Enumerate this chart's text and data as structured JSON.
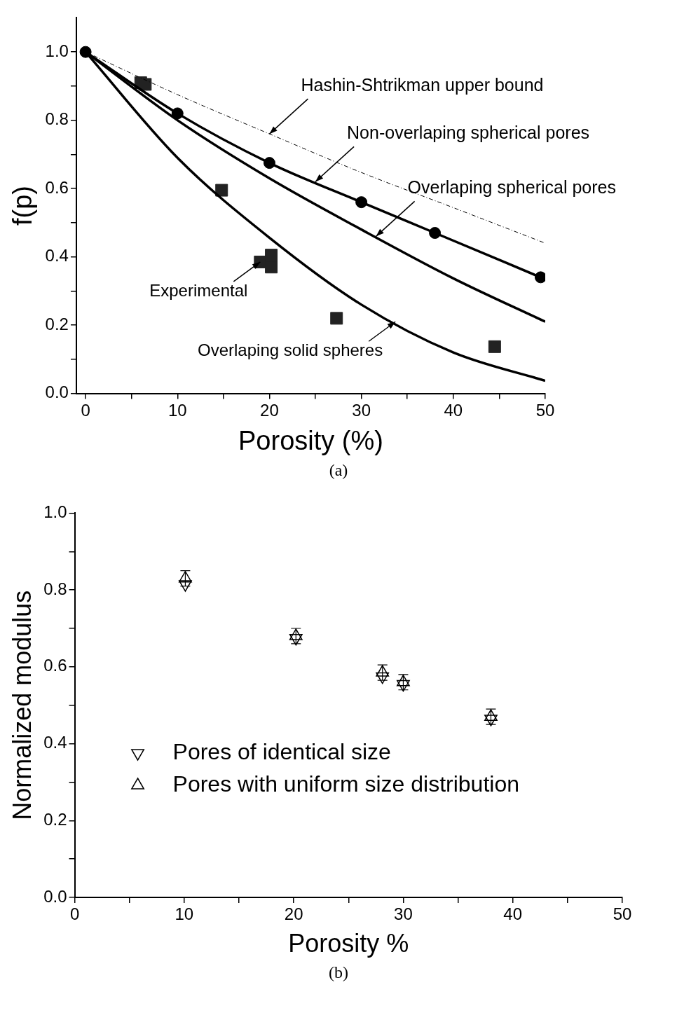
{
  "chart_data": [
    {
      "type": "line",
      "xlabel": "Porosity (%)",
      "ylabel": "f(p)",
      "xlim": [
        -1,
        50
      ],
      "ylim": [
        0,
        1.1
      ],
      "xticks": [
        0,
        {
          "value": 5,
          "label": null
        },
        10,
        {
          "value": 15,
          "label": null
        },
        20,
        {
          "value": 25,
          "label": null
        },
        30,
        {
          "value": 35,
          "label": null
        },
        40,
        {
          "value": 45,
          "label": null
        },
        50
      ],
      "yticks": [
        {
          "value": 0,
          "label": "0.0"
        },
        {
          "value": 0.1,
          "label": null
        },
        {
          "value": 0.2,
          "label": "0.2"
        },
        {
          "value": 0.3,
          "label": null
        },
        {
          "value": 0.4,
          "label": "0.4"
        },
        {
          "value": 0.5,
          "label": null
        },
        {
          "value": 0.6,
          "label": "0.6"
        },
        {
          "value": 0.7,
          "label": null
        },
        {
          "value": 0.8,
          "label": "0.8"
        },
        {
          "value": 0.9,
          "label": null
        },
        {
          "value": 1,
          "label": "1.0"
        }
      ],
      "series": [
        {
          "type": "line",
          "color": "#000000",
          "line_style": "dashed",
          "marker": "none",
          "x": [
            0,
            10,
            20,
            30,
            40,
            50
          ],
          "values": [
            1,
            0.875,
            0.76,
            0.647,
            0.544,
            0.44
          ]
        },
        {
          "type": "line",
          "color": "#000000",
          "line_style": "solid",
          "marker": "none",
          "x": [
            0,
            10,
            20,
            30,
            40,
            50
          ],
          "values": [
            1,
            0.8,
            0.63,
            0.48,
            0.337,
            0.21
          ]
        },
        {
          "type": "line",
          "color": "#000000",
          "line_style": "solid",
          "marker": "none",
          "x": [
            0,
            10,
            20,
            30,
            40,
            50
          ],
          "values": [
            1,
            0.69,
            0.456,
            0.26,
            0.12,
            0.037
          ]
        },
        {
          "type": "line",
          "color": "#000000",
          "line_style": "solid",
          "marker": "circle",
          "x": [
            0,
            10,
            20,
            30,
            38,
            49.5
          ],
          "values": [
            1,
            0.82,
            0.675,
            0.56,
            0.47,
            0.34
          ]
        },
        {
          "type": "scatter",
          "color": "#222222",
          "marker": "square",
          "x": [
            6,
            6.5,
            14.8,
            19,
            20.2,
            20.2,
            27.3,
            44.5
          ],
          "values": [
            0.91,
            0.905,
            0.595,
            0.385,
            0.405,
            0.37,
            0.22,
            0.137
          ]
        }
      ],
      "annotations": [
        {
          "text": "Hashin-Shtrikman upper bound",
          "x": 20,
          "y": 0.76
        },
        {
          "text": "Non-overlaping spherical pores",
          "x": 25,
          "y": 0.62
        },
        {
          "text": "Overlaping spherical pores",
          "x": 31.6,
          "y": 0.46
        },
        {
          "text": "Experimental",
          "x": 19,
          "y": 0.385
        },
        {
          "text": "Overlaping solid spheres",
          "x": 33.7,
          "y": 0.21
        },
        "(a)"
      ],
      "legend": false
    },
    {
      "type": "scatter",
      "xlabel": "Porosity %",
      "ylabel": "Normalized modulus",
      "xlim": [
        0,
        50
      ],
      "ylim": [
        0,
        1
      ],
      "xticks": [
        0,
        {
          "value": 5,
          "label": null
        },
        10,
        {
          "value": 15,
          "label": null
        },
        20,
        {
          "value": 25,
          "label": null
        },
        30,
        {
          "value": 35,
          "label": null
        },
        40,
        {
          "value": 45,
          "label": null
        },
        50
      ],
      "yticks": [
        {
          "value": 0,
          "label": "0.0"
        },
        {
          "value": 0.1,
          "label": null
        },
        {
          "value": 0.2,
          "label": "0.2"
        },
        {
          "value": 0.3,
          "label": null
        },
        {
          "value": 0.4,
          "label": "0.4"
        },
        {
          "value": 0.5,
          "label": null
        },
        {
          "value": 0.6,
          "label": "0.6"
        },
        {
          "value": 0.7,
          "label": null
        },
        {
          "value": 0.8,
          "label": "0.8"
        },
        {
          "value": 0.9,
          "label": null
        },
        {
          "value": 1,
          "label": "1.0"
        }
      ],
      "series": [
        {
          "name": "Pores of identical size",
          "color": "#000000",
          "marker": "triangle-down",
          "x": [
            10.1,
            20.2,
            28.1,
            30,
            38
          ],
          "values": [
            0.815,
            0.675,
            0.575,
            0.555,
            0.465
          ]
        },
        {
          "name": "Pores with uniform size distribution",
          "color": "#000000",
          "marker": "triangle",
          "x": [
            10.1,
            20.2,
            28.1,
            30,
            38
          ],
          "values": [
            0.83,
            0.68,
            0.585,
            0.56,
            0.47
          ],
          "errors": [
            0.02,
            0.02,
            0.02,
            0.02,
            0.02
          ]
        }
      ],
      "annotations": [
        "(b)"
      ],
      "legend": "bottom left"
    }
  ]
}
